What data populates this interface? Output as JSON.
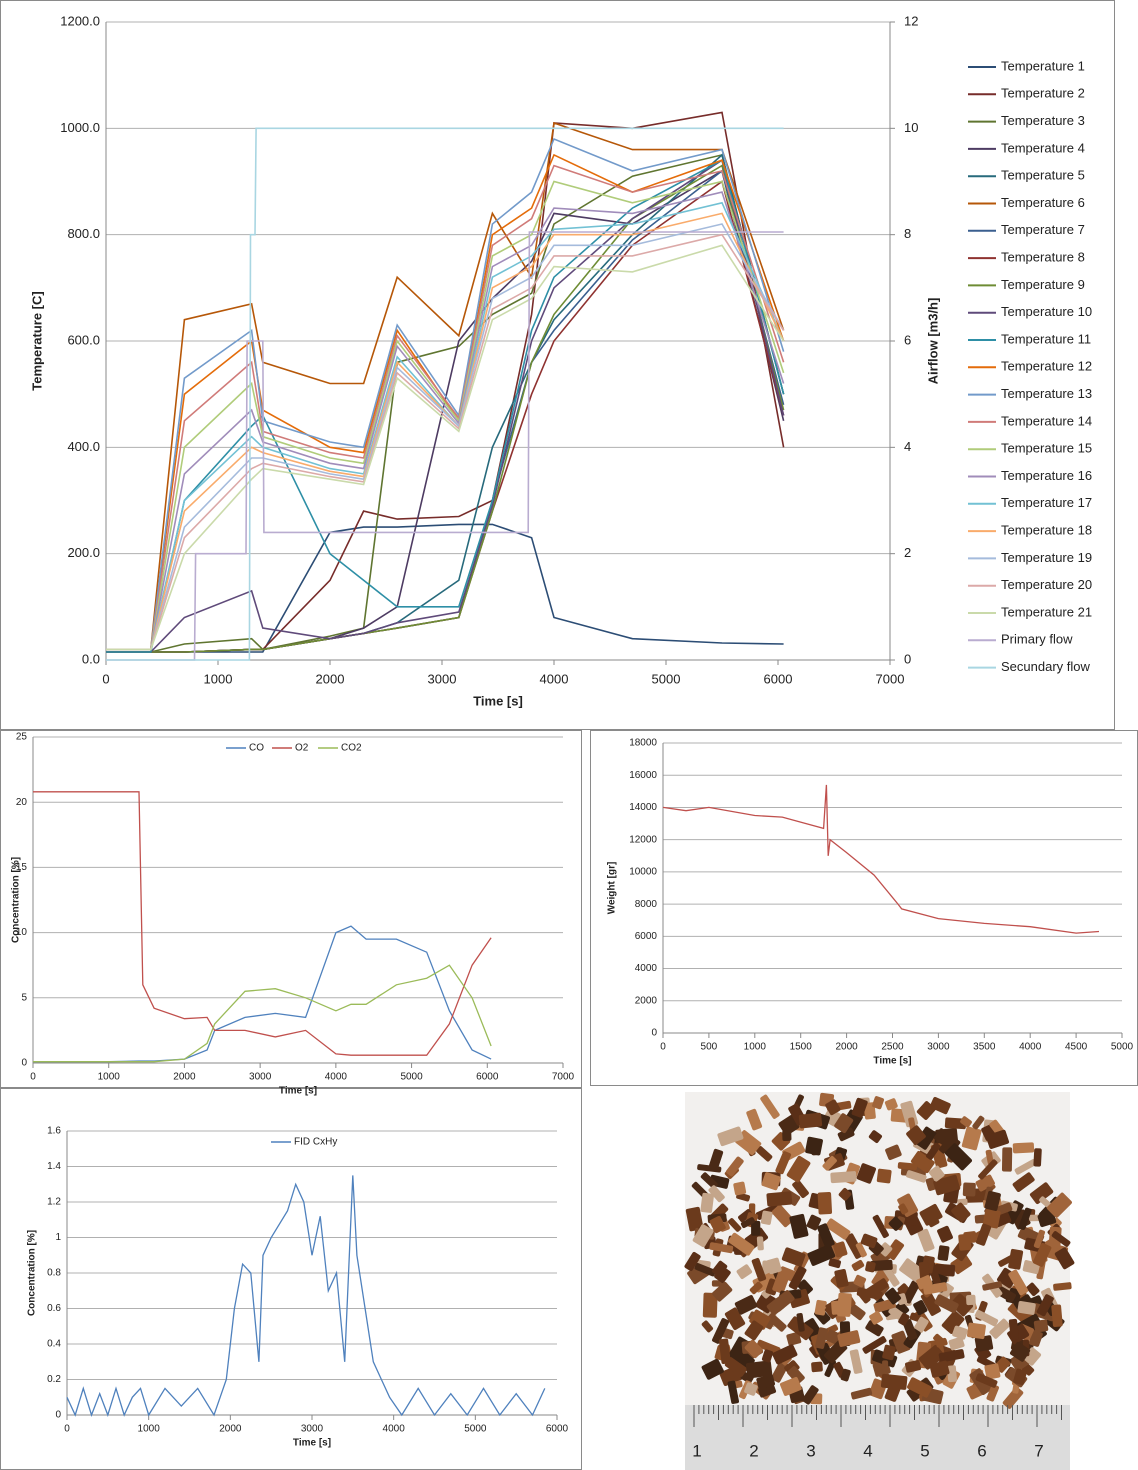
{
  "chart_data": [
    {
      "type": "line",
      "xlabel": "Time [s]",
      "ylabel": "Temperature [C]",
      "y2label": "Airflow [m3/h]",
      "xlim": [
        0,
        7000
      ],
      "xticks": [
        0,
        1000,
        2000,
        3000,
        4000,
        5000,
        6000,
        7000
      ],
      "ylim": [
        0,
        1200
      ],
      "yticks": [
        {
          "value": 0,
          "label": "0.0"
        },
        {
          "value": 200,
          "label": "200.0"
        },
        {
          "value": 400,
          "label": "400.0"
        },
        {
          "value": 600,
          "label": "600.0"
        },
        {
          "value": 800,
          "label": "800.0"
        },
        {
          "value": 1000,
          "label": "1000.0"
        },
        {
          "value": 1200,
          "label": "1200.0"
        }
      ],
      "y2lim": [
        0,
        12
      ],
      "y2ticks": [
        0,
        2,
        4,
        6,
        8,
        10,
        12
      ],
      "grid": true,
      "legend": "right",
      "x": [
        0,
        400,
        700,
        1300,
        1400,
        2000,
        2300,
        2600,
        3150,
        3450,
        3800,
        4000,
        4700,
        5500,
        6050
      ],
      "series": [
        {
          "name": "Temperature 1",
          "color": "#2c4d75",
          "values": [
            15,
            15,
            15,
            15,
            15,
            240,
            250,
            250,
            255,
            255,
            230,
            80,
            40,
            32,
            30
          ]
        },
        {
          "name": "Temperature 2",
          "color": "#772c2a",
          "values": [
            15,
            15,
            15,
            20,
            20,
            150,
            280,
            265,
            270,
            300,
            650,
            1010,
            1000,
            1030,
            400
          ]
        },
        {
          "name": "Temperature 3",
          "color": "#5f7530",
          "values": [
            15,
            15,
            30,
            40,
            20,
            45,
            60,
            560,
            590,
            650,
            690,
            820,
            910,
            950,
            500
          ]
        },
        {
          "name": "Temperature 4",
          "color": "#4d3b62",
          "values": [
            15,
            15,
            15,
            20,
            20,
            40,
            60,
            100,
            600,
            680,
            750,
            840,
            820,
            920,
            450
          ]
        },
        {
          "name": "Temperature 5",
          "color": "#276a7c",
          "values": [
            15,
            15,
            15,
            20,
            20,
            40,
            50,
            70,
            150,
            400,
            560,
            640,
            800,
            950,
            500
          ]
        },
        {
          "name": "Temperature 6",
          "color": "#b65708",
          "values": [
            20,
            20,
            640,
            670,
            560,
            520,
            520,
            720,
            610,
            840,
            720,
            1010,
            960,
            960,
            620
          ]
        },
        {
          "name": "Temperature 7",
          "color": "#3a5f8f",
          "values": [
            15,
            15,
            15,
            20,
            20,
            40,
            50,
            60,
            80,
            300,
            560,
            620,
            790,
            920,
            480
          ]
        },
        {
          "name": "Temperature 8",
          "color": "#8f3230",
          "values": [
            15,
            15,
            15,
            20,
            20,
            40,
            50,
            60,
            80,
            280,
            500,
            600,
            780,
            900,
            460
          ]
        },
        {
          "name": "Temperature 9",
          "color": "#6e8c34",
          "values": [
            15,
            15,
            15,
            20,
            20,
            40,
            50,
            60,
            80,
            280,
            560,
            650,
            830,
            930,
            470
          ]
        },
        {
          "name": "Temperature 10",
          "color": "#5f4a7a",
          "values": [
            15,
            15,
            80,
            130,
            60,
            40,
            50,
            70,
            90,
            290,
            600,
            700,
            830,
            940,
            460
          ]
        },
        {
          "name": "Temperature 11",
          "color": "#2e8fa6",
          "values": [
            15,
            15,
            300,
            440,
            460,
            200,
            150,
            100,
            100,
            300,
            620,
            720,
            850,
            940,
            500
          ]
        },
        {
          "name": "Temperature 12",
          "color": "#e46c0a",
          "values": [
            20,
            20,
            500,
            600,
            470,
            400,
            390,
            620,
            450,
            800,
            850,
            950,
            880,
            940,
            600
          ]
        },
        {
          "name": "Temperature 13",
          "color": "#729aca",
          "values": [
            20,
            20,
            530,
            620,
            450,
            410,
            400,
            630,
            460,
            820,
            880,
            980,
            920,
            960,
            580
          ]
        },
        {
          "name": "Temperature 14",
          "color": "#d07b79",
          "values": [
            20,
            20,
            450,
            560,
            430,
            390,
            380,
            610,
            455,
            780,
            830,
            930,
            880,
            920,
            560
          ]
        },
        {
          "name": "Temperature 15",
          "color": "#b0cc7a",
          "values": [
            20,
            20,
            400,
            520,
            420,
            380,
            370,
            600,
            450,
            760,
            800,
            900,
            860,
            900,
            540
          ]
        },
        {
          "name": "Temperature 16",
          "color": "#a08cba",
          "values": [
            20,
            20,
            350,
            470,
            410,
            370,
            360,
            590,
            445,
            740,
            780,
            850,
            840,
            880,
            520
          ]
        },
        {
          "name": "Temperature 17",
          "color": "#72c1d4",
          "values": [
            20,
            20,
            300,
            420,
            400,
            360,
            350,
            570,
            440,
            720,
            760,
            810,
            820,
            860,
            600
          ]
        },
        {
          "name": "Temperature 18",
          "color": "#f9ab6b",
          "values": [
            20,
            20,
            280,
            400,
            390,
            355,
            345,
            560,
            440,
            700,
            740,
            800,
            800,
            840,
            600
          ]
        },
        {
          "name": "Temperature 19",
          "color": "#a5bbdc",
          "values": [
            20,
            20,
            250,
            380,
            380,
            350,
            340,
            550,
            440,
            680,
            720,
            780,
            780,
            820,
            620
          ]
        },
        {
          "name": "Temperature 20",
          "color": "#dca9a8",
          "values": [
            20,
            20,
            230,
            360,
            370,
            345,
            335,
            540,
            435,
            660,
            700,
            760,
            760,
            800,
            620
          ]
        },
        {
          "name": "Temperature 21",
          "color": "#cadaaa",
          "values": [
            20,
            20,
            200,
            340,
            360,
            340,
            330,
            530,
            430,
            640,
            680,
            740,
            730,
            780,
            600
          ]
        },
        {
          "name": "Primary flow",
          "color": "#b9acd0",
          "axis": "y2",
          "x": [
            0,
            790,
            800,
            1250,
            1260,
            1400,
            1410,
            3770,
            3780,
            6050
          ],
          "values": [
            0,
            0,
            2,
            2,
            6,
            6,
            2.4,
            2.4,
            8.05,
            8.05
          ]
        },
        {
          "name": "Secundary flow",
          "color": "#a9d6e2",
          "axis": "y2",
          "x": [
            0,
            1280,
            1290,
            1330,
            1340,
            6050
          ],
          "values": [
            0,
            0,
            8,
            8,
            10,
            10
          ]
        }
      ]
    },
    {
      "type": "line",
      "xlabel": "Time [s]",
      "ylabel": "Concentration [%]",
      "xlim": [
        0,
        7000
      ],
      "xticks": [
        0,
        1000,
        2000,
        3000,
        4000,
        5000,
        6000,
        7000
      ],
      "ylim": [
        0,
        25
      ],
      "yticks": [
        0,
        5,
        10,
        15,
        20,
        25
      ],
      "grid": true,
      "legend": "top",
      "x": [
        0,
        500,
        1000,
        1400,
        1450,
        1600,
        2000,
        2300,
        2400,
        2800,
        3200,
        3600,
        4000,
        4200,
        4400,
        4800,
        5200,
        5500,
        5800,
        6050
      ],
      "series": [
        {
          "name": "CO",
          "color": "#4f81bd",
          "values": [
            0.1,
            0.1,
            0.1,
            0.15,
            0.15,
            0.15,
            0.3,
            1.0,
            2.5,
            3.5,
            3.8,
            3.5,
            10,
            10.5,
            9.5,
            9.5,
            8.5,
            4,
            1,
            0.3
          ]
        },
        {
          "name": "O2",
          "color": "#c0504d",
          "values": [
            20.8,
            20.8,
            20.8,
            20.8,
            6,
            4.2,
            3.4,
            3.5,
            2.5,
            2.5,
            2,
            2.5,
            0.7,
            0.6,
            0.6,
            0.6,
            0.6,
            3,
            7.5,
            9.6
          ]
        },
        {
          "name": "CO2",
          "color": "#9bbb59",
          "values": [
            0.1,
            0.1,
            0.1,
            0.1,
            0.1,
            0.1,
            0.3,
            1.5,
            3,
            5.5,
            5.7,
            5,
            4,
            4.5,
            4.5,
            6,
            6.5,
            7.5,
            5,
            1.3
          ]
        }
      ]
    },
    {
      "type": "line",
      "xlabel": "Time [s]",
      "ylabel": "Weight [gr]",
      "xlim": [
        0,
        5000
      ],
      "xticks": [
        0,
        500,
        1000,
        1500,
        2000,
        2500,
        3000,
        3500,
        4000,
        4500,
        5000
      ],
      "ylim": [
        0,
        18000
      ],
      "yticks": [
        0,
        2000,
        4000,
        6000,
        8000,
        10000,
        12000,
        14000,
        16000,
        18000
      ],
      "grid": true,
      "x": [
        0,
        250,
        500,
        1000,
        1300,
        1750,
        1780,
        1800,
        1820,
        2000,
        2300,
        2560,
        2600,
        3000,
        3500,
        4000,
        4500,
        4750
      ],
      "series": [
        {
          "color": "#c0504d",
          "values": [
            14000,
            13800,
            14000,
            13500,
            13400,
            12700,
            15400,
            11000,
            12000,
            11200,
            9800,
            8000,
            7700,
            7100,
            6800,
            6600,
            6200,
            6300
          ]
        }
      ]
    },
    {
      "type": "line",
      "xlabel": "Time [s]",
      "ylabel": "Concentration [%]",
      "xlim": [
        0,
        6000
      ],
      "xticks": [
        0,
        1000,
        2000,
        3000,
        4000,
        5000,
        6000
      ],
      "ylim": [
        0,
        1.6
      ],
      "yticks": [
        0,
        0.2,
        0.4,
        0.6,
        0.8,
        1,
        1.2,
        1.4,
        1.6
      ],
      "grid": true,
      "legend": "top",
      "x": [
        0,
        100,
        200,
        300,
        400,
        500,
        600,
        700,
        800,
        900,
        1000,
        1200,
        1400,
        1600,
        1800,
        1950,
        2050,
        2150,
        2250,
        2350,
        2400,
        2500,
        2700,
        2800,
        2900,
        3000,
        3100,
        3200,
        3300,
        3400,
        3500,
        3550,
        3650,
        3750,
        3850,
        3950,
        4100,
        4300,
        4500,
        4700,
        4900,
        5100,
        5300,
        5500,
        5700,
        5850
      ],
      "series": [
        {
          "name": "FID CxHy",
          "color": "#4f81bd",
          "values": [
            0.1,
            0,
            0.15,
            0,
            0.12,
            0,
            0.15,
            0,
            0.1,
            0.15,
            0,
            0.15,
            0.05,
            0.15,
            0,
            0.2,
            0.6,
            0.85,
            0.8,
            0.3,
            0.9,
            1.0,
            1.15,
            1.3,
            1.2,
            0.9,
            1.12,
            0.7,
            0.8,
            0.3,
            1.35,
            0.9,
            0.6,
            0.3,
            0.2,
            0.1,
            0,
            0.15,
            0,
            0.12,
            0,
            0.15,
            0,
            0.12,
            0,
            0.15
          ]
        }
      ]
    }
  ],
  "photo": {
    "ruler_labels": [
      "1",
      "2",
      "3",
      "4",
      "5",
      "6",
      "7"
    ]
  }
}
